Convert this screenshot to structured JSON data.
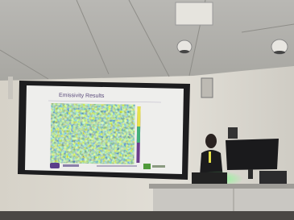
{
  "slide": {
    "title": "Emissivity Results"
  }
}
